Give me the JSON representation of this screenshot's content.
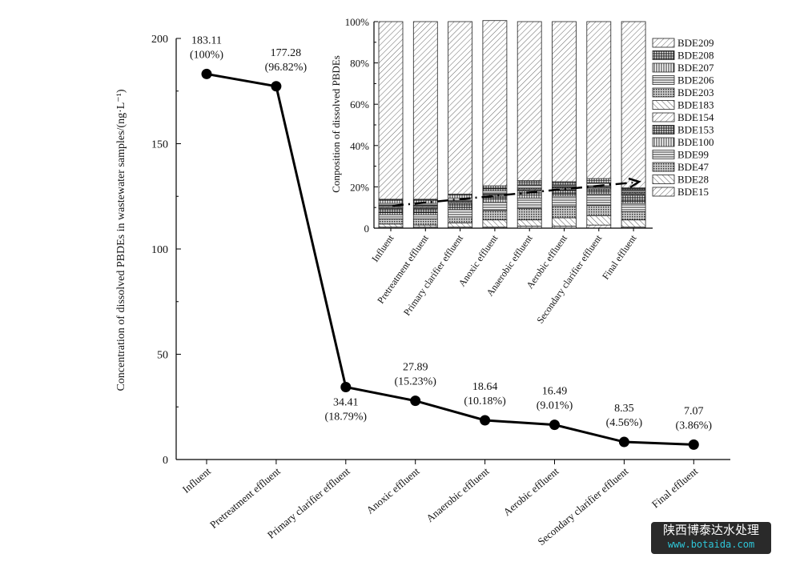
{
  "chart_data": [
    {
      "type": "line",
      "ylabel": "Concentration of dissolved PBDEs in wastewater samples/(ng·L⁻¹)",
      "xlabel": "",
      "ylim": [
        0,
        200
      ],
      "yticks": [
        0,
        50,
        100,
        150,
        200
      ],
      "categories": [
        "Influent",
        "Pretreatment effluent",
        "Primary clarifier effluent",
        "Anoxic effluent",
        "Anaerobic effluent",
        "Aerobic effluent",
        "Secondary clarifier effluent",
        "Final effluent"
      ],
      "values": [
        183.11,
        177.28,
        34.41,
        27.89,
        18.64,
        16.49,
        8.35,
        7.07
      ],
      "value_labels": [
        "183.11",
        "177.28",
        "34.41",
        "27.89",
        "18.64",
        "16.49",
        "8.35",
        "7.07"
      ],
      "percent_labels": [
        "(100%)",
        "(96.82%)",
        "(18.79%)",
        "(15.23%)",
        "(10.18%)",
        "(9.01%)",
        "(4.56%)",
        "(3.86%)"
      ],
      "color": "#000000"
    },
    {
      "type": "bar",
      "stacked": true,
      "ylabel": "Conposition of dissolved PBDEs",
      "ylim": [
        0,
        100
      ],
      "yticks": [
        "0",
        "20%",
        "40%",
        "60%",
        "80%",
        "100%"
      ],
      "categories": [
        "Influent",
        "Pretreatment effluent",
        "Primary clarifier effluent",
        "Anoxic effluent",
        "Anaerobic effluent",
        "Aerobic effluent",
        "Secondary clarifier effluent",
        "Final effluent"
      ],
      "legend": "right",
      "series": [
        {
          "name": "BDE15",
          "pattern": "diag-right",
          "values": [
            0.5,
            0.5,
            0.5,
            0.5,
            1,
            1,
            1.5,
            0.5
          ]
        },
        {
          "name": "BDE28",
          "pattern": "diag-left",
          "values": [
            1.5,
            1,
            2,
            3.5,
            3,
            4,
            4.5,
            3.5
          ]
        },
        {
          "name": "BDE47",
          "pattern": "dots",
          "values": [
            2.5,
            3,
            3,
            4.5,
            5.5,
            5.5,
            5,
            4
          ]
        },
        {
          "name": "BDE99",
          "pattern": "horizontal",
          "values": [
            2,
            2,
            3.5,
            4,
            5,
            5,
            5.5,
            4
          ]
        },
        {
          "name": "BDE100",
          "pattern": "vertical",
          "values": [
            1,
            1,
            1,
            1.5,
            1.5,
            1,
            1,
            1
          ]
        },
        {
          "name": "BDE153",
          "pattern": "grid",
          "values": [
            2,
            2,
            2,
            1.5,
            2,
            2,
            1.5,
            3
          ]
        },
        {
          "name": "BDE154",
          "pattern": "diag-right",
          "values": [
            0.5,
            0.5,
            0.5,
            0.5,
            0.5,
            0.5,
            0.5,
            0.5
          ]
        },
        {
          "name": "BDE183",
          "pattern": "diag-left",
          "values": [
            0.5,
            0.5,
            0.5,
            0.5,
            0.5,
            0.5,
            0.5,
            0.5
          ]
        },
        {
          "name": "BDE203",
          "pattern": "dots",
          "values": [
            0.5,
            0.5,
            0.5,
            0.5,
            0.5,
            0.5,
            0.5,
            0.5
          ]
        },
        {
          "name": "BDE206",
          "pattern": "horizontal",
          "values": [
            1,
            1,
            1,
            1,
            1.5,
            1,
            1.5,
            1
          ]
        },
        {
          "name": "BDE207",
          "pattern": "vertical",
          "values": [
            1.5,
            1.5,
            1.5,
            1,
            1,
            1,
            1,
            0.5
          ]
        },
        {
          "name": "BDE208",
          "pattern": "grid",
          "values": [
            0.5,
            0.5,
            0.5,
            1.5,
            1,
            0.5,
            1,
            0.5
          ]
        },
        {
          "name": "BDE209",
          "pattern": "diag-right",
          "values": [
            86,
            86,
            83.5,
            80,
            77,
            77.5,
            76,
            80.5
          ]
        }
      ]
    }
  ],
  "watermark": {
    "line1": "陕西博泰达水处理",
    "line2": "www.botaida.com"
  }
}
